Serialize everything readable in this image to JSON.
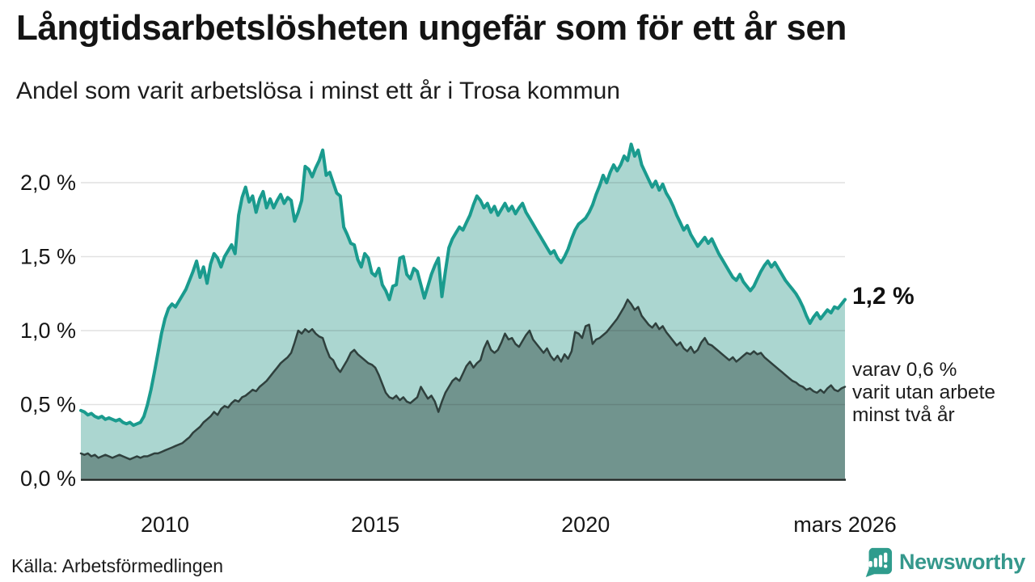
{
  "title": "Långtidsarbetslösheten ungefär som för ett år sen",
  "subtitle": "Andel som varit arbetslösa i minst ett år i Trosa kommun",
  "annotations": {
    "latest_total": "1,2 %",
    "secondary": "varav 0,6 %\nvarit utan arbete\nminst två år"
  },
  "source": "Källa: Arbetsförmedlingen",
  "logo": {
    "text": "Newsworthy",
    "color": "#2f9c8d"
  },
  "colors": {
    "line_total": "#1a9b8e",
    "fill_total": "#abd6d0",
    "line_two_years": "#2f403d",
    "fill_two_years": "#71948e",
    "gridline": "rgba(20,20,20,0.13)",
    "axis_line": "#1a2321",
    "text": "#161616"
  },
  "chart_data": {
    "type": "area",
    "title": "Långtidsarbetslösheten ungefär som för ett år sen",
    "subtitle": "Andel som varit arbetslösa i minst ett år i Trosa kommun",
    "unit": "%",
    "frequency": "monthly",
    "x_start": "2008-01",
    "x_end": "2026-03",
    "ylim": [
      0,
      2.3
    ],
    "grid": true,
    "y_ticks": [
      {
        "label": "0,0 %",
        "value": 0.0
      },
      {
        "label": "0,5 %",
        "value": 0.5
      },
      {
        "label": "1,0 %",
        "value": 1.0
      },
      {
        "label": "1,5 %",
        "value": 1.5
      },
      {
        "label": "2,0 %",
        "value": 2.0
      }
    ],
    "x_ticks": [
      {
        "label": "2010",
        "month_index": 24
      },
      {
        "label": "2015",
        "month_index": 84
      },
      {
        "label": "2020",
        "month_index": 144
      },
      {
        "label": "mars 2026",
        "month_index": 218
      }
    ],
    "series": [
      {
        "name": "Andel arbetslösa minst ett år",
        "latest_value": 1.2,
        "color": "#1a9b8e",
        "fill": "#abd6d0",
        "line_width": 4,
        "values": [
          0.46,
          0.45,
          0.43,
          0.44,
          0.42,
          0.41,
          0.42,
          0.4,
          0.41,
          0.4,
          0.39,
          0.4,
          0.38,
          0.37,
          0.38,
          0.36,
          0.37,
          0.38,
          0.42,
          0.5,
          0.6,
          0.72,
          0.85,
          0.98,
          1.08,
          1.15,
          1.18,
          1.16,
          1.2,
          1.24,
          1.28,
          1.34,
          1.4,
          1.47,
          1.36,
          1.43,
          1.32,
          1.45,
          1.52,
          1.49,
          1.43,
          1.5,
          1.54,
          1.58,
          1.52,
          1.78,
          1.9,
          1.97,
          1.87,
          1.91,
          1.8,
          1.89,
          1.94,
          1.83,
          1.89,
          1.83,
          1.88,
          1.92,
          1.86,
          1.9,
          1.88,
          1.74,
          1.8,
          1.88,
          2.11,
          2.09,
          2.04,
          2.1,
          2.15,
          2.22,
          2.05,
          2.07,
          2.0,
          1.93,
          1.91,
          1.7,
          1.65,
          1.59,
          1.58,
          1.48,
          1.43,
          1.52,
          1.49,
          1.39,
          1.37,
          1.42,
          1.31,
          1.27,
          1.21,
          1.3,
          1.31,
          1.49,
          1.5,
          1.38,
          1.35,
          1.42,
          1.4,
          1.31,
          1.22,
          1.3,
          1.38,
          1.44,
          1.49,
          1.23,
          1.4,
          1.56,
          1.62,
          1.66,
          1.7,
          1.68,
          1.73,
          1.78,
          1.85,
          1.91,
          1.88,
          1.83,
          1.86,
          1.8,
          1.84,
          1.78,
          1.82,
          1.86,
          1.81,
          1.84,
          1.79,
          1.83,
          1.86,
          1.8,
          1.76,
          1.72,
          1.68,
          1.64,
          1.6,
          1.56,
          1.52,
          1.54,
          1.49,
          1.46,
          1.5,
          1.55,
          1.62,
          1.68,
          1.72,
          1.74,
          1.76,
          1.8,
          1.85,
          1.92,
          1.98,
          2.05,
          2.0,
          2.07,
          2.12,
          2.08,
          2.12,
          2.18,
          2.15,
          2.26,
          2.18,
          2.22,
          2.12,
          2.07,
          2.02,
          1.97,
          2.01,
          1.95,
          1.99,
          1.93,
          1.89,
          1.84,
          1.78,
          1.73,
          1.68,
          1.71,
          1.65,
          1.61,
          1.57,
          1.6,
          1.63,
          1.59,
          1.62,
          1.57,
          1.52,
          1.48,
          1.44,
          1.4,
          1.36,
          1.34,
          1.38,
          1.33,
          1.3,
          1.27,
          1.3,
          1.35,
          1.4,
          1.44,
          1.47,
          1.43,
          1.46,
          1.42,
          1.38,
          1.34,
          1.31,
          1.28,
          1.25,
          1.21,
          1.16,
          1.1,
          1.05,
          1.09,
          1.12,
          1.08,
          1.11,
          1.14,
          1.12,
          1.16,
          1.15,
          1.18,
          1.21
        ]
      },
      {
        "name": "varav arbetslösa minst två år",
        "latest_value": 0.6,
        "color": "#2f403d",
        "fill": "#71948e",
        "line_width": 2.5,
        "values": [
          0.17,
          0.16,
          0.17,
          0.15,
          0.16,
          0.14,
          0.15,
          0.16,
          0.15,
          0.14,
          0.15,
          0.16,
          0.15,
          0.14,
          0.13,
          0.14,
          0.15,
          0.14,
          0.15,
          0.15,
          0.16,
          0.17,
          0.17,
          0.18,
          0.19,
          0.2,
          0.21,
          0.22,
          0.23,
          0.24,
          0.26,
          0.28,
          0.31,
          0.33,
          0.35,
          0.38,
          0.4,
          0.42,
          0.45,
          0.43,
          0.47,
          0.49,
          0.48,
          0.51,
          0.53,
          0.52,
          0.55,
          0.56,
          0.58,
          0.6,
          0.59,
          0.62,
          0.64,
          0.66,
          0.69,
          0.72,
          0.75,
          0.78,
          0.8,
          0.82,
          0.85,
          0.92,
          1.0,
          0.98,
          1.01,
          0.99,
          1.01,
          0.98,
          0.96,
          0.95,
          0.88,
          0.82,
          0.8,
          0.75,
          0.72,
          0.76,
          0.8,
          0.85,
          0.87,
          0.84,
          0.82,
          0.8,
          0.78,
          0.77,
          0.75,
          0.7,
          0.64,
          0.58,
          0.55,
          0.54,
          0.56,
          0.53,
          0.55,
          0.52,
          0.51,
          0.53,
          0.55,
          0.62,
          0.58,
          0.54,
          0.56,
          0.52,
          0.45,
          0.52,
          0.58,
          0.62,
          0.66,
          0.68,
          0.66,
          0.71,
          0.76,
          0.79,
          0.75,
          0.78,
          0.8,
          0.88,
          0.93,
          0.87,
          0.85,
          0.87,
          0.92,
          0.98,
          0.94,
          0.95,
          0.91,
          0.89,
          0.93,
          0.97,
          1.0,
          0.94,
          0.91,
          0.88,
          0.85,
          0.88,
          0.83,
          0.8,
          0.83,
          0.79,
          0.84,
          0.81,
          0.86,
          0.99,
          0.98,
          0.95,
          1.03,
          1.04,
          0.91,
          0.94,
          0.95,
          0.97,
          0.99,
          1.02,
          1.05,
          1.08,
          1.12,
          1.16,
          1.21,
          1.18,
          1.14,
          1.16,
          1.1,
          1.07,
          1.04,
          1.02,
          1.05,
          1.01,
          1.03,
          0.99,
          0.96,
          0.93,
          0.9,
          0.92,
          0.88,
          0.86,
          0.89,
          0.85,
          0.87,
          0.92,
          0.95,
          0.91,
          0.9,
          0.88,
          0.86,
          0.84,
          0.82,
          0.8,
          0.82,
          0.79,
          0.81,
          0.83,
          0.85,
          0.84,
          0.86,
          0.84,
          0.85,
          0.82,
          0.8,
          0.78,
          0.76,
          0.74,
          0.72,
          0.7,
          0.68,
          0.66,
          0.65,
          0.63,
          0.62,
          0.6,
          0.61,
          0.59,
          0.58,
          0.6,
          0.58,
          0.61,
          0.63,
          0.6,
          0.59,
          0.61,
          0.62
        ]
      }
    ]
  }
}
